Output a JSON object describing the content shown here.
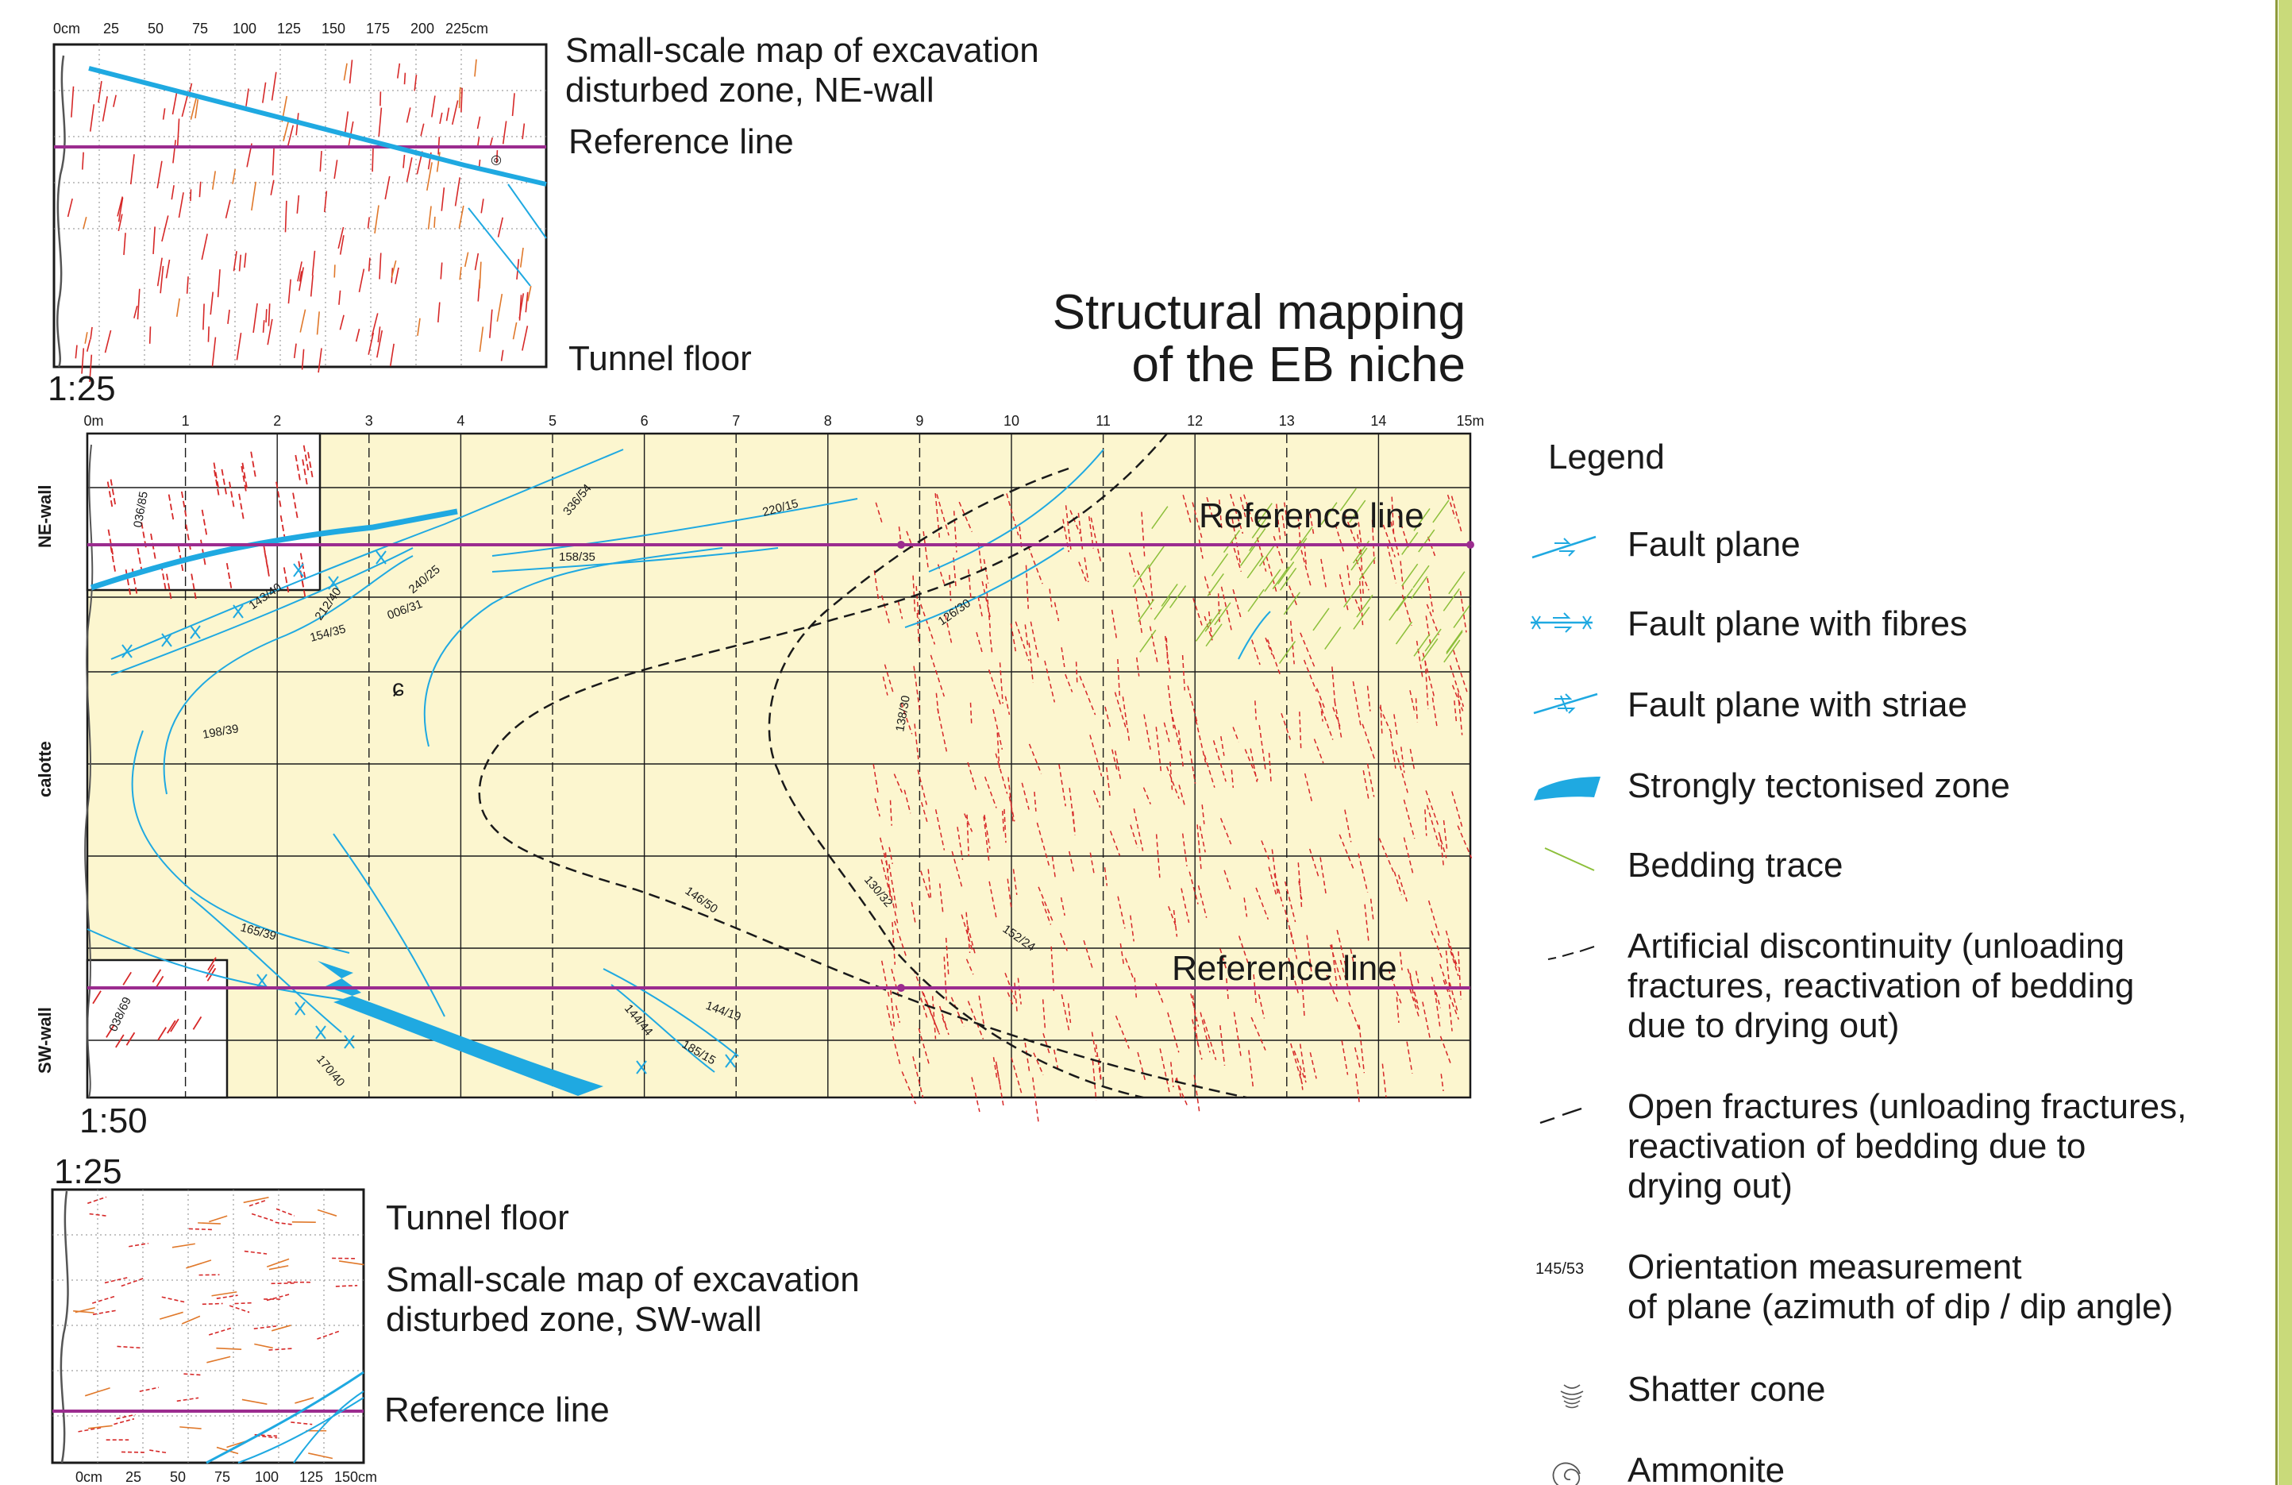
{
  "title": {
    "line1": "Structural mapping",
    "line2": "of the EB niche"
  },
  "scales": {
    "ne_inset": "1:25",
    "main": "1:50",
    "sw_inset": "1:25"
  },
  "ne_inset": {
    "caption_line1": "Small-scale map of excavation",
    "caption_line2": "disturbed zone, NE-wall",
    "reference_line": "Reference line",
    "tunnel_floor": "Tunnel floor",
    "ticks": [
      "0cm",
      "25",
      "50",
      "75",
      "100",
      "125",
      "150",
      "175",
      "200",
      "225cm"
    ]
  },
  "sw_inset": {
    "tunnel_floor": "Tunnel floor",
    "caption_line1": "Small-scale map of excavation",
    "caption_line2": "disturbed zone, SW-wall",
    "reference_line": "Reference line",
    "ticks": [
      "0cm",
      "25",
      "50",
      "75",
      "100",
      "125",
      "150cm"
    ]
  },
  "main_map": {
    "ticks": [
      "0m",
      "1",
      "2",
      "3",
      "4",
      "5",
      "6",
      "7",
      "8",
      "9",
      "10",
      "11",
      "12",
      "13",
      "14",
      "15m"
    ],
    "side_labels": {
      "ne": "NE-wall",
      "calotte": "calotte",
      "sw": "SW-wall"
    },
    "reference_line_top": "Reference line",
    "reference_line_bottom": "Reference line",
    "measurements": [
      "036/85",
      "336/54",
      "220/15",
      "158/35",
      "143/40",
      "212/40",
      "240/25",
      "154/35",
      "006/31",
      "126/30",
      "198/39",
      "138/30",
      "146/50",
      "130/32",
      "152/24",
      "165/39",
      "144/19",
      "144/44",
      "185/15",
      "170/40",
      "038/69"
    ]
  },
  "legend": {
    "title": "Legend",
    "items": [
      {
        "icon": "fault-plane-icon",
        "lines": [
          "Fault plane"
        ]
      },
      {
        "icon": "fault-plane-fibres-icon",
        "lines": [
          "Fault plane with fibres"
        ]
      },
      {
        "icon": "fault-plane-striae-icon",
        "lines": [
          "Fault plane with striae"
        ]
      },
      {
        "icon": "tectonised-zone-icon",
        "lines": [
          "Strongly tectonised zone"
        ]
      },
      {
        "icon": "bedding-trace-icon",
        "lines": [
          "Bedding trace"
        ]
      },
      {
        "icon": "artificial-discontinuity-icon",
        "lines": [
          "Artificial discontinuity (unloading",
          "fractures, reactivation of bedding",
          "due to drying out)"
        ]
      },
      {
        "icon": "open-fractures-icon",
        "lines": [
          "Open fractures (unloading fractures,",
          "reactivation of bedding due to",
          "drying out)"
        ]
      },
      {
        "icon": "orientation-measurement-icon",
        "sample": "145/53",
        "lines": [
          "Orientation measurement",
          "of plane (azimuth of dip / dip angle)"
        ]
      },
      {
        "icon": "shatter-cone-icon",
        "lines": [
          "Shatter cone"
        ]
      },
      {
        "icon": "ammonite-icon",
        "lines": [
          "Ammonite"
        ]
      }
    ]
  },
  "colors": {
    "fault": "#1fa9e1",
    "fracture": "#d62828",
    "orange_fracture": "#e0782a",
    "bedding": "#8cbf3a",
    "reference": "#9b2c8f",
    "map_bg": "#fcf6cf",
    "grid": "#1a1a1a"
  }
}
